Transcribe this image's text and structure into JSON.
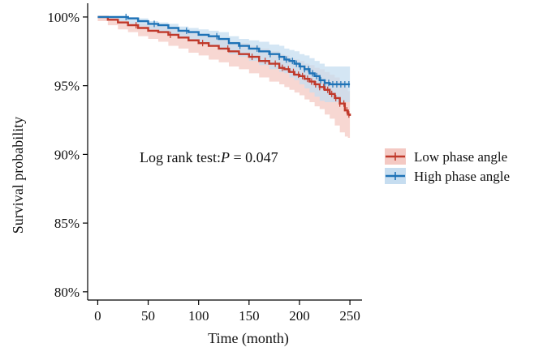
{
  "chart_data": {
    "type": "line",
    "subtype": "kaplan-meier survival curve",
    "xlabel": "Time (month)",
    "ylabel": "Survival probability",
    "xlim": [
      -10,
      262
    ],
    "ylim": [
      79.4,
      101
    ],
    "x_ticks": [
      0,
      50,
      100,
      150,
      200,
      250
    ],
    "x_tick_labels": [
      "0",
      "50",
      "100",
      "150",
      "200",
      "250"
    ],
    "y_ticks": [
      100,
      95,
      90,
      85,
      80
    ],
    "y_tick_labels": [
      "100%",
      "95%",
      "90%",
      "85%",
      "80%"
    ],
    "grid": false,
    "annotation": {
      "prefix": "Log rank test:",
      "stat": "P",
      "suffix": " = 0.047"
    },
    "legend_position": "right",
    "series": [
      {
        "name": "Low phase angle",
        "color": "#c0392b",
        "band_color": "#f4c9c3",
        "x": [
          0,
          10,
          20,
          30,
          40,
          50,
          60,
          70,
          80,
          90,
          100,
          110,
          120,
          130,
          140,
          150,
          160,
          170,
          180,
          185,
          190,
          195,
          200,
          205,
          210,
          215,
          220,
          225,
          230,
          235,
          240,
          245,
          248,
          250
        ],
        "y": [
          100,
          99.8,
          99.6,
          99.4,
          99.2,
          99.0,
          98.9,
          98.7,
          98.5,
          98.3,
          98.1,
          97.9,
          97.7,
          97.5,
          97.3,
          97.1,
          96.8,
          96.6,
          96.3,
          96.2,
          96.0,
          95.8,
          95.7,
          95.5,
          95.3,
          95.1,
          94.9,
          94.7,
          94.4,
          94.1,
          93.7,
          93.2,
          92.9,
          92.8
        ],
        "lower": [
          100,
          99.7,
          99.4,
          99.1,
          98.9,
          98.6,
          98.4,
          98.2,
          97.9,
          97.7,
          97.4,
          97.2,
          96.9,
          96.7,
          96.4,
          96.2,
          95.9,
          95.6,
          95.3,
          95.1,
          94.9,
          94.7,
          94.5,
          94.3,
          94.0,
          93.8,
          93.5,
          93.3,
          92.9,
          92.6,
          92.1,
          91.6,
          91.3,
          91.2
        ],
        "upper": [
          100,
          99.9,
          99.8,
          99.6,
          99.5,
          99.4,
          99.3,
          99.2,
          99.0,
          98.9,
          98.7,
          98.6,
          98.4,
          98.2,
          98.1,
          97.9,
          97.7,
          97.5,
          97.3,
          97.2,
          97.0,
          96.9,
          96.8,
          96.6,
          96.5,
          96.3,
          96.2,
          96.0,
          95.8,
          95.6,
          95.3,
          94.9,
          94.6,
          94.5
        ],
        "censor_x": [
          38,
          72,
          104,
          129,
          153,
          166,
          176,
          183,
          189,
          194,
          199,
          203,
          208,
          212,
          216,
          220,
          224,
          228,
          232,
          236,
          240,
          244,
          247,
          249
        ]
      },
      {
        "name": "High phase angle",
        "color": "#1f73b7",
        "band_color": "#c6ddf0",
        "x": [
          0,
          10,
          20,
          30,
          40,
          50,
          60,
          70,
          80,
          90,
          100,
          110,
          120,
          130,
          140,
          150,
          160,
          170,
          180,
          185,
          190,
          195,
          200,
          205,
          210,
          215,
          220,
          225,
          230,
          235,
          240,
          245,
          248,
          250
        ],
        "y": [
          100,
          100,
          100,
          99.9,
          99.7,
          99.5,
          99.4,
          99.2,
          99.0,
          98.9,
          98.7,
          98.6,
          98.4,
          98.1,
          97.9,
          97.7,
          97.5,
          97.3,
          97.1,
          96.9,
          96.8,
          96.6,
          96.4,
          96.2,
          95.9,
          95.7,
          95.4,
          95.2,
          95.1,
          95.1,
          95.1,
          95.1,
          95.1,
          95.1
        ],
        "lower": [
          100,
          100,
          99.9,
          99.7,
          99.5,
          99.3,
          99.1,
          98.9,
          98.7,
          98.5,
          98.3,
          98.1,
          97.9,
          97.6,
          97.3,
          97.1,
          96.8,
          96.5,
          96.2,
          96.0,
          95.9,
          95.6,
          95.4,
          95.1,
          94.8,
          94.5,
          94.2,
          93.9,
          93.8,
          93.8,
          93.8,
          93.8,
          93.8,
          93.8
        ],
        "upper": [
          100,
          100,
          100,
          100,
          99.9,
          99.7,
          99.6,
          99.5,
          99.3,
          99.2,
          99.1,
          99.0,
          98.9,
          98.6,
          98.4,
          98.3,
          98.2,
          98.0,
          97.9,
          97.7,
          97.6,
          97.5,
          97.3,
          97.2,
          97.0,
          96.8,
          96.6,
          96.4,
          96.4,
          96.4,
          96.4,
          96.4,
          96.4,
          96.4
        ],
        "censor_x": [
          28,
          56,
          88,
          118,
          141,
          158,
          171,
          180,
          187,
          193,
          197,
          201,
          205,
          209,
          213,
          217,
          221,
          225,
          229,
          233,
          237,
          241,
          245,
          249
        ]
      }
    ]
  }
}
